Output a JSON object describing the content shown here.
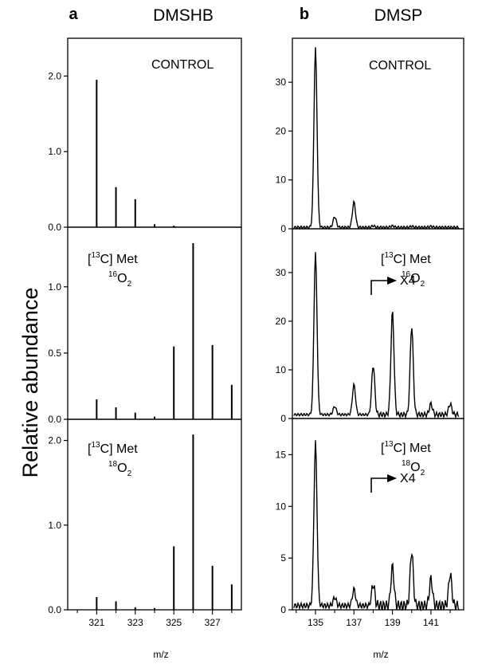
{
  "y_axis_label": "Relative abundance",
  "columns": [
    {
      "letter": "a",
      "title": "DMSHB",
      "x_title": "m/z"
    },
    {
      "letter": "b",
      "title": "DMSP",
      "x_title": "m/z"
    }
  ],
  "chart_data": [
    {
      "type": "bar",
      "panel": "a-1",
      "annotation": "CONTROL",
      "x": [
        321,
        322,
        323,
        324,
        325
      ],
      "values": [
        1.95,
        0.53,
        0.37,
        0.04,
        0.02
      ],
      "xlim": [
        319.5,
        328.5
      ],
      "ylim": [
        0,
        2.5
      ],
      "yticks": [
        0.0,
        1.0,
        2.0
      ],
      "ytick_labels": [
        "0.0",
        "1.0",
        "2.0"
      ]
    },
    {
      "type": "bar",
      "panel": "a-2",
      "annotation": {
        "label_prefix": "[",
        "isotope_sup": "13",
        "label_rest": "C] Met",
        "line2_sup": "16",
        "line2_main": "O",
        "line2_sub": "2"
      },
      "x": [
        321,
        322,
        323,
        324,
        325,
        326,
        327,
        328
      ],
      "values": [
        0.15,
        0.09,
        0.05,
        0.02,
        0.55,
        1.33,
        0.56,
        0.26
      ],
      "xlim": [
        319.5,
        328.5
      ],
      "ylim": [
        0,
        1.45
      ],
      "yticks": [
        0.0,
        0.5,
        1.0
      ],
      "ytick_labels": [
        "0.0",
        "0.5",
        "1.0"
      ]
    },
    {
      "type": "bar",
      "panel": "a-3",
      "annotation": {
        "label_prefix": "[",
        "isotope_sup": "13",
        "label_rest": "C] Met",
        "line2_sup": "18",
        "line2_main": "O",
        "line2_sub": "2"
      },
      "x": [
        321,
        322,
        323,
        324,
        325,
        326,
        327,
        328
      ],
      "values": [
        0.15,
        0.1,
        0.03,
        0.02,
        0.75,
        2.07,
        0.52,
        0.3
      ],
      "xlim": [
        319.5,
        328.5
      ],
      "ylim": [
        0,
        2.25
      ],
      "yticks": [
        0.0,
        1.0,
        2.0
      ],
      "ytick_labels": [
        "0.0",
        "1.0",
        "2.0"
      ],
      "xticks": [
        321,
        323,
        325,
        327
      ],
      "xtick_labels": [
        "321",
        "323",
        "325",
        "327"
      ]
    },
    {
      "type": "line",
      "panel": "b-1",
      "annotation": "CONTROL",
      "peaks": [
        {
          "x": 135,
          "y": 37
        },
        {
          "x": 136,
          "y": 2.5
        },
        {
          "x": 137,
          "y": 5.5
        },
        {
          "x": 138,
          "y": 0.6
        },
        {
          "x": 139,
          "y": 0.6
        },
        {
          "x": 140,
          "y": 0.5
        },
        {
          "x": 141,
          "y": 0.5
        }
      ],
      "baseline": 0.3,
      "xlim": [
        133.8,
        142.7
      ],
      "ylim": [
        0,
        39
      ],
      "yticks": [
        0,
        10,
        20,
        30
      ],
      "ytick_labels": [
        "0",
        "10",
        "20",
        "30"
      ]
    },
    {
      "type": "line",
      "panel": "b-2",
      "annotation": {
        "label_prefix": "[",
        "isotope_sup": "13",
        "label_rest": "C] Met",
        "line2_sup": "16",
        "line2_main": "O",
        "line2_sub": "2"
      },
      "scale_label": "X4",
      "scale_from_x": 137.9,
      "peaks": [
        {
          "x": 135,
          "y": 34
        },
        {
          "x": 136,
          "y": 2.5
        },
        {
          "x": 137,
          "y": 7
        },
        {
          "x": 138,
          "y": 11
        },
        {
          "x": 139,
          "y": 22
        },
        {
          "x": 140,
          "y": 19
        },
        {
          "x": 141,
          "y": 3
        },
        {
          "x": 142,
          "y": 3
        }
      ],
      "baseline": 0.8,
      "xlim": [
        133.8,
        142.7
      ],
      "ylim": [
        0,
        39
      ],
      "yticks": [
        0,
        10,
        20,
        30
      ],
      "ytick_labels": [
        "0",
        "10",
        "20",
        "30"
      ]
    },
    {
      "type": "line",
      "panel": "b-3",
      "annotation": {
        "label_prefix": "[",
        "isotope_sup": "13",
        "label_rest": "C] Met",
        "line2_sup": "18",
        "line2_main": "O",
        "line2_sub": "2"
      },
      "scale_label": "X4",
      "scale_from_x": 137.9,
      "peaks": [
        {
          "x": 135,
          "y": 16.2
        },
        {
          "x": 136,
          "y": 1.2
        },
        {
          "x": 137,
          "y": 2
        },
        {
          "x": 138,
          "y": 2.5
        },
        {
          "x": 139,
          "y": 4.2
        },
        {
          "x": 140,
          "y": 5.7
        },
        {
          "x": 141,
          "y": 3
        },
        {
          "x": 142,
          "y": 3.5
        }
      ],
      "baseline": 0.4,
      "xlim": [
        133.8,
        142.7
      ],
      "ylim": [
        0,
        18.5
      ],
      "yticks": [
        0,
        5,
        10,
        15
      ],
      "ytick_labels": [
        "0",
        "5",
        "10",
        "15"
      ],
      "xticks": [
        135,
        137,
        139,
        141
      ],
      "xtick_labels": [
        "135",
        "137",
        "139",
        "141"
      ]
    }
  ]
}
